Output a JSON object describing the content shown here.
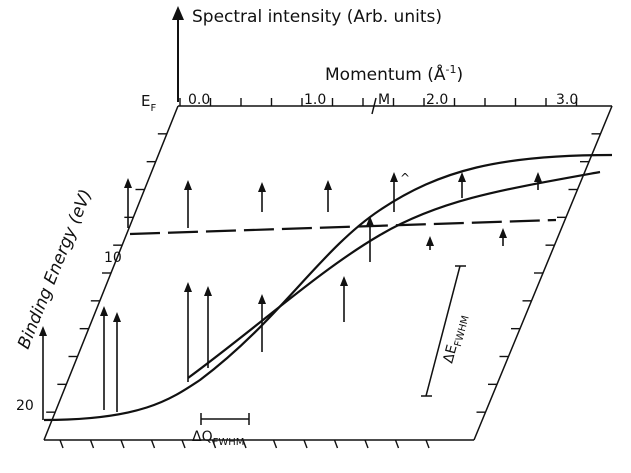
{
  "labels": {
    "spectral_intensity": "Spectral intensity (Arb. units)",
    "momentum": "Momentum (Å",
    "momentum_exp": "-1",
    "momentum_close": ")",
    "ef": "E",
    "ef_sub": "F",
    "binding_energy": "Binding Energy (eV)",
    "m_point": "M",
    "delta_e": "ΔE",
    "delta_e_sub": "FWHM",
    "delta_q": "ΔQ",
    "delta_q_sub": "FWHM"
  },
  "momentum_ticks": [
    "0.0",
    "1.0",
    "2.0",
    "3.0"
  ],
  "energy_ticks": [
    "10",
    "20"
  ],
  "colors": {
    "ink": "#111111",
    "background": "#ffffff"
  }
}
